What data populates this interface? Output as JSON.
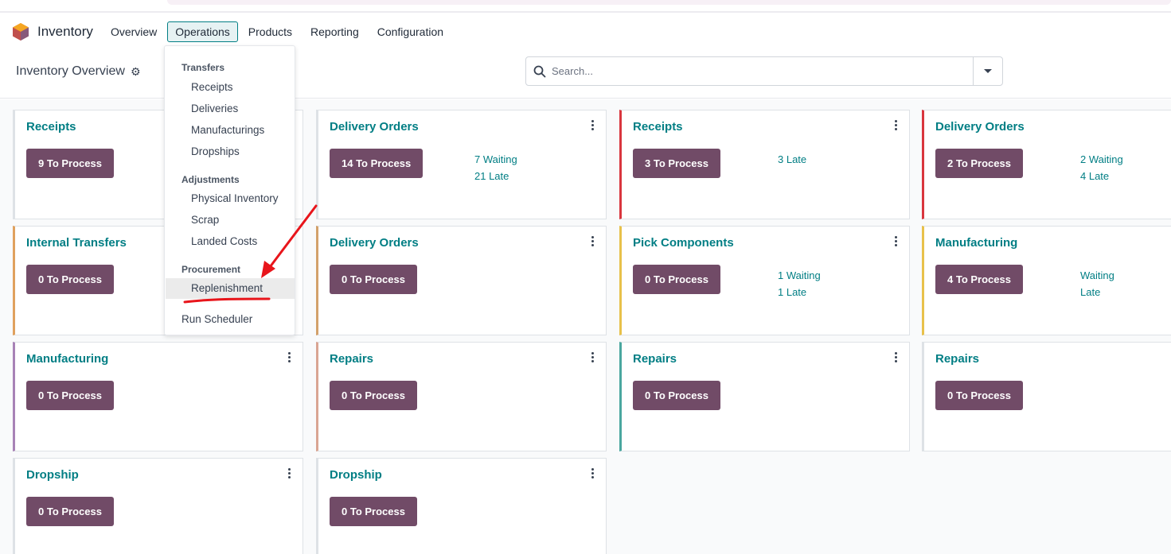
{
  "app": {
    "name": "Inventory"
  },
  "nav": {
    "items": [
      "Overview",
      "Operations",
      "Products",
      "Reporting",
      "Configuration"
    ],
    "active": "Operations"
  },
  "control": {
    "title": "Inventory Overview",
    "search_placeholder": "Search..."
  },
  "dropdown": {
    "sections": [
      {
        "header": "Transfers",
        "items": [
          "Receipts",
          "Deliveries",
          "Manufacturings",
          "Dropships"
        ]
      },
      {
        "header": "Adjustments",
        "items": [
          "Physical Inventory",
          "Scrap",
          "Landed Costs"
        ]
      },
      {
        "header": "Procurement",
        "items": [
          "Replenishment"
        ]
      }
    ],
    "highlighted": "Replenishment",
    "footer_item": "Run Scheduler"
  },
  "cards": [
    {
      "title": "Receipts",
      "button": "9 To Process",
      "stats": [],
      "accent": "#ffffff"
    },
    {
      "title": "Delivery Orders",
      "button": "14 To Process",
      "stats": [
        "7 Waiting",
        "21 Late"
      ],
      "accent": "#ffffff"
    },
    {
      "title": "Receipts",
      "button": "3 To Process",
      "stats": [
        "3 Late"
      ],
      "accent": "#d9363e"
    },
    {
      "title": "Delivery Orders",
      "button": "2 To Process",
      "stats": [
        "2 Waiting",
        "4 Late"
      ],
      "accent": "#d9363e"
    },
    {
      "title": "Internal Transfers",
      "button": "0 To Process",
      "stats": [],
      "accent": "#e0a15e"
    },
    {
      "title": "Delivery Orders",
      "button": "0 To Process",
      "stats": [],
      "accent": "#d3a16b"
    },
    {
      "title": "Pick Components",
      "button": "0 To Process",
      "stats": [
        "1 Waiting",
        "1 Late"
      ],
      "accent": "#e8c14a"
    },
    {
      "title": "Manufacturing",
      "button": "4 To Process",
      "stats": [
        "Waiting",
        "Late"
      ],
      "accent": "#e8c14a"
    },
    {
      "title": "Manufacturing",
      "button": "0 To Process",
      "stats": [],
      "accent": "#a882b6"
    },
    {
      "title": "Repairs",
      "button": "0 To Process",
      "stats": [],
      "accent": "#d9a593"
    },
    {
      "title": "Repairs",
      "button": "0 To Process",
      "stats": [],
      "accent": "#4aa79f"
    },
    {
      "title": "Repairs",
      "button": "0 To Process",
      "stats": [],
      "accent": "#ffffff"
    },
    {
      "title": "Dropship",
      "button": "0 To Process",
      "stats": [],
      "accent": "#ffffff"
    },
    {
      "title": "Dropship",
      "button": "0 To Process",
      "stats": [],
      "accent": "#ffffff"
    }
  ],
  "colors": {
    "brand": "#714b67",
    "link": "#017e84",
    "annotation": "#e8151b"
  }
}
